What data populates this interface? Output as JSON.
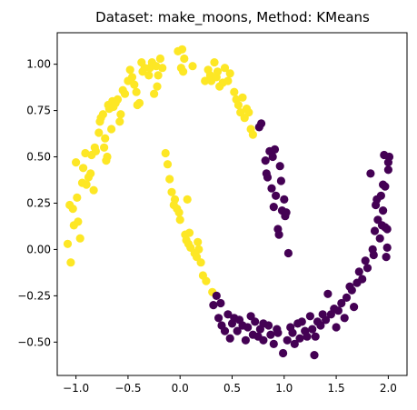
{
  "chart_data": {
    "type": "scatter",
    "title": "Dataset: make_moons, Method: KMeans",
    "xlabel": "",
    "ylabel": "",
    "xlim": [
      -1.18,
      2.18
    ],
    "ylim": [
      -0.68,
      1.17
    ],
    "xticks": [
      -1.0,
      -0.5,
      0.0,
      0.5,
      1.0,
      1.5,
      2.0
    ],
    "xtick_labels": [
      "−1.0",
      "−0.5",
      "0.0",
      "0.5",
      "1.0",
      "1.5",
      "2.0"
    ],
    "yticks": [
      -0.5,
      -0.25,
      0.0,
      0.25,
      0.5,
      0.75,
      1.0
    ],
    "ytick_labels": [
      "−0.50",
      "−0.25",
      "0.00",
      "0.25",
      "0.50",
      "0.75",
      "1.00"
    ],
    "grid": false,
    "legend": "none",
    "series": [
      {
        "cluster": 0,
        "color": "#fde725",
        "points": [
          [
            -1.08,
            0.03
          ],
          [
            -1.06,
            0.24
          ],
          [
            -1.03,
            0.22
          ],
          [
            -1.05,
            -0.07
          ],
          [
            -1.02,
            0.13
          ],
          [
            -1.0,
            0.47
          ],
          [
            -0.99,
            0.28
          ],
          [
            -0.98,
            0.15
          ],
          [
            -0.96,
            0.06
          ],
          [
            -0.94,
            0.36
          ],
          [
            -0.93,
            0.44
          ],
          [
            -0.91,
            0.52
          ],
          [
            -0.9,
            0.35
          ],
          [
            -0.88,
            0.39
          ],
          [
            -0.86,
            0.41
          ],
          [
            -0.85,
            0.51
          ],
          [
            -0.83,
            0.32
          ],
          [
            -0.82,
            0.55
          ],
          [
            -0.81,
            0.53
          ],
          [
            -0.78,
            0.63
          ],
          [
            -0.77,
            0.69
          ],
          [
            -0.76,
            0.71
          ],
          [
            -0.74,
            0.73
          ],
          [
            -0.73,
            0.55
          ],
          [
            -0.72,
            0.6
          ],
          [
            -0.71,
            0.48
          ],
          [
            -0.7,
            0.5
          ],
          [
            -0.69,
            0.78
          ],
          [
            -0.68,
            0.76
          ],
          [
            -0.66,
            0.65
          ],
          [
            -0.65,
            0.8
          ],
          [
            -0.64,
            0.77
          ],
          [
            -0.62,
            0.79
          ],
          [
            -0.6,
            0.81
          ],
          [
            -0.58,
            0.69
          ],
          [
            -0.57,
            0.73
          ],
          [
            -0.55,
            0.86
          ],
          [
            -0.53,
            0.84
          ],
          [
            -0.5,
            0.91
          ],
          [
            -0.48,
            0.97
          ],
          [
            -0.46,
            0.93
          ],
          [
            -0.44,
            0.89
          ],
          [
            -0.42,
            0.85
          ],
          [
            -0.41,
            0.78
          ],
          [
            -0.39,
            0.79
          ],
          [
            -0.37,
            1.01
          ],
          [
            -0.36,
            0.96
          ],
          [
            -0.34,
            0.98
          ],
          [
            -0.3,
            0.94
          ],
          [
            -0.29,
            0.98
          ],
          [
            -0.27,
            1.01
          ],
          [
            -0.25,
            0.84
          ],
          [
            -0.23,
            0.99
          ],
          [
            -0.22,
            0.88
          ],
          [
            -0.21,
            0.94
          ],
          [
            -0.19,
            1.03
          ],
          [
            -0.17,
            0.98
          ],
          [
            -0.14,
            0.52
          ],
          [
            -0.12,
            0.46
          ],
          [
            -0.1,
            0.38
          ],
          [
            -0.08,
            0.31
          ],
          [
            -0.06,
            0.24
          ],
          [
            -0.05,
            0.27
          ],
          [
            -0.03,
            0.22
          ],
          [
            -0.02,
            1.07
          ],
          [
            -0.01,
            0.2
          ],
          [
            0.0,
            0.16
          ],
          [
            0.01,
            0.98
          ],
          [
            0.02,
            1.08
          ],
          [
            0.03,
            0.96
          ],
          [
            0.04,
            1.03
          ],
          [
            0.05,
            0.08
          ],
          [
            0.06,
            0.05
          ],
          [
            0.07,
            0.27
          ],
          [
            0.08,
            0.03
          ],
          [
            0.09,
            0.09
          ],
          [
            0.1,
            0.01
          ],
          [
            0.12,
            0.99
          ],
          [
            0.14,
            -0.02
          ],
          [
            0.16,
            -0.04
          ],
          [
            0.17,
            0.04
          ],
          [
            0.18,
            0.0
          ],
          [
            0.2,
            -0.07
          ],
          [
            0.22,
            -0.14
          ],
          [
            0.24,
            0.91
          ],
          [
            0.25,
            -0.17
          ],
          [
            0.27,
            0.97
          ],
          [
            0.29,
            0.94
          ],
          [
            0.3,
            0.91
          ],
          [
            0.31,
            -0.23
          ],
          [
            0.33,
            1.01
          ],
          [
            0.35,
            0.93
          ],
          [
            0.36,
            0.96
          ],
          [
            0.38,
            0.88
          ],
          [
            0.41,
            0.9
          ],
          [
            0.43,
            0.98
          ],
          [
            0.46,
            0.91
          ],
          [
            0.48,
            0.95
          ],
          [
            0.52,
            0.85
          ],
          [
            0.54,
            0.81
          ],
          [
            0.56,
            0.78
          ],
          [
            0.58,
            0.74
          ],
          [
            0.6,
            0.82
          ],
          [
            0.62,
            0.71
          ],
          [
            0.64,
            0.76
          ],
          [
            0.66,
            0.74
          ],
          [
            0.68,
            0.65
          ],
          [
            0.7,
            0.62
          ]
        ]
      },
      {
        "cluster": 1,
        "color": "#440154",
        "points": [
          [
            0.32,
            -0.3
          ],
          [
            0.35,
            -0.25
          ],
          [
            0.37,
            -0.37
          ],
          [
            0.39,
            -0.29
          ],
          [
            0.4,
            -0.41
          ],
          [
            0.43,
            -0.44
          ],
          [
            0.46,
            -0.35
          ],
          [
            0.48,
            -0.48
          ],
          [
            0.5,
            -0.4
          ],
          [
            0.52,
            -0.37
          ],
          [
            0.55,
            -0.44
          ],
          [
            0.57,
            -0.38
          ],
          [
            0.6,
            -0.41
          ],
          [
            0.63,
            -0.49
          ],
          [
            0.65,
            -0.42
          ],
          [
            0.68,
            -0.36
          ],
          [
            0.7,
            -0.46
          ],
          [
            0.72,
            -0.39
          ],
          [
            0.75,
            -0.47
          ],
          [
            0.77,
            -0.43
          ],
          [
            0.76,
            0.66
          ],
          [
            0.78,
            0.68
          ],
          [
            0.8,
            -0.4
          ],
          [
            0.8,
            -0.49
          ],
          [
            0.82,
            0.48
          ],
          [
            0.83,
            0.41
          ],
          [
            0.84,
            0.39
          ],
          [
            0.85,
            -0.41
          ],
          [
            0.86,
            0.53
          ],
          [
            0.87,
            -0.46
          ],
          [
            0.88,
            0.33
          ],
          [
            0.89,
            0.5
          ],
          [
            0.9,
            0.23
          ],
          [
            0.9,
            -0.51
          ],
          [
            0.91,
            0.54
          ],
          [
            0.92,
            0.29
          ],
          [
            0.93,
            -0.43
          ],
          [
            0.94,
            0.11
          ],
          [
            0.94,
            -0.45
          ],
          [
            0.95,
            0.08
          ],
          [
            0.96,
            0.45
          ],
          [
            0.97,
            0.37
          ],
          [
            0.98,
            0.21
          ],
          [
            0.99,
            -0.56
          ],
          [
            1.0,
            0.27
          ],
          [
            1.01,
            0.18
          ],
          [
            1.02,
            0.2
          ],
          [
            1.03,
            -0.49
          ],
          [
            1.04,
            -0.02
          ],
          [
            1.06,
            -0.42
          ],
          [
            1.08,
            -0.45
          ],
          [
            1.1,
            -0.51
          ],
          [
            1.13,
            -0.4
          ],
          [
            1.15,
            -0.48
          ],
          [
            1.17,
            -0.39
          ],
          [
            1.2,
            -0.44
          ],
          [
            1.22,
            -0.47
          ],
          [
            1.25,
            -0.36
          ],
          [
            1.27,
            -0.43
          ],
          [
            1.29,
            -0.57
          ],
          [
            1.3,
            -0.47
          ],
          [
            1.32,
            -0.39
          ],
          [
            1.35,
            -0.41
          ],
          [
            1.37,
            -0.35
          ],
          [
            1.4,
            -0.38
          ],
          [
            1.42,
            -0.24
          ],
          [
            1.45,
            -0.35
          ],
          [
            1.48,
            -0.32
          ],
          [
            1.5,
            -0.42
          ],
          [
            1.52,
            -0.33
          ],
          [
            1.55,
            -0.29
          ],
          [
            1.58,
            -0.37
          ],
          [
            1.6,
            -0.26
          ],
          [
            1.63,
            -0.2
          ],
          [
            1.65,
            -0.22
          ],
          [
            1.67,
            -0.31
          ],
          [
            1.7,
            -0.18
          ],
          [
            1.72,
            -0.12
          ],
          [
            1.75,
            -0.16
          ],
          [
            1.78,
            -0.06
          ],
          [
            1.8,
            -0.1
          ],
          [
            1.83,
            0.41
          ],
          [
            1.85,
            0.0
          ],
          [
            1.86,
            -0.03
          ],
          [
            1.87,
            0.1
          ],
          [
            1.88,
            0.24
          ],
          [
            1.89,
            0.27
          ],
          [
            1.9,
            0.16
          ],
          [
            1.92,
            0.06
          ],
          [
            1.93,
            0.29
          ],
          [
            1.94,
            0.13
          ],
          [
            1.95,
            0.21
          ],
          [
            1.96,
            0.51
          ],
          [
            1.97,
            0.34
          ],
          [
            1.97,
            0.12
          ],
          [
            1.98,
            -0.04
          ],
          [
            1.99,
            0.01
          ],
          [
            2.0,
            0.43
          ],
          [
            2.0,
            0.47
          ],
          [
            2.01,
            0.5
          ],
          [
            1.95,
            0.35
          ],
          [
            1.99,
            0.11
          ]
        ]
      }
    ]
  }
}
